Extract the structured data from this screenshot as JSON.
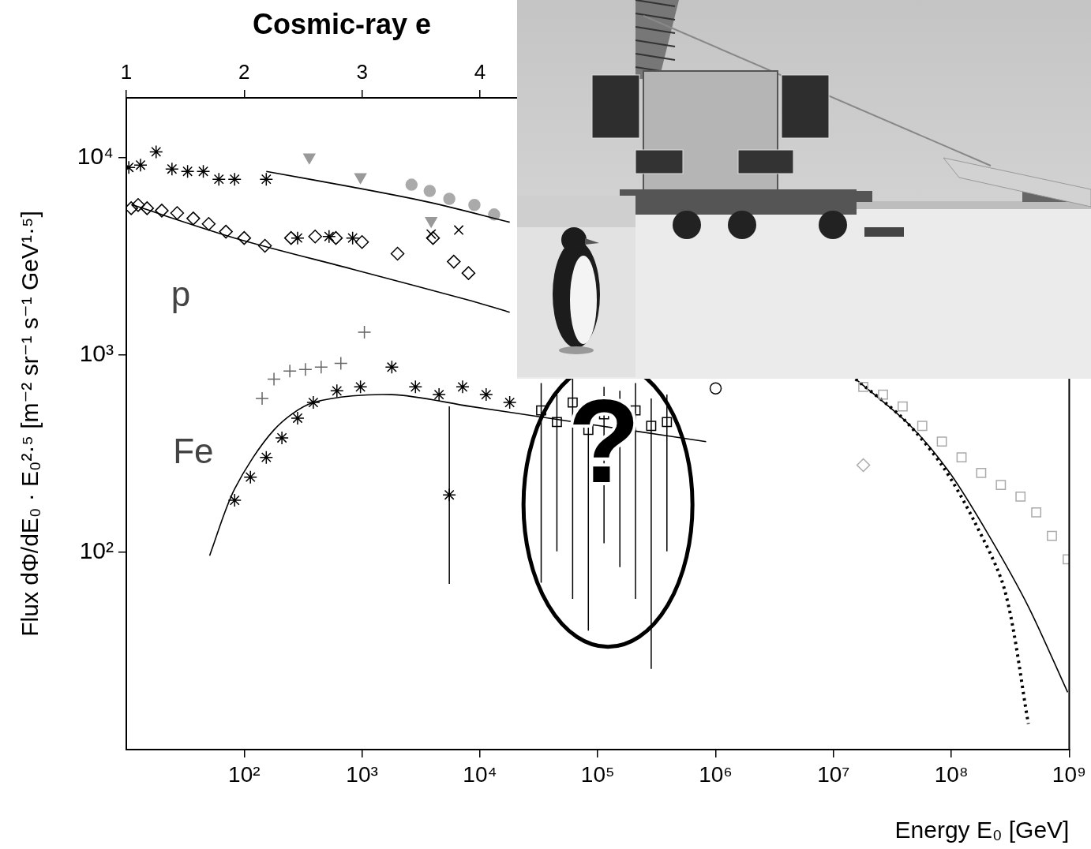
{
  "chart_data": {
    "type": "scatter",
    "title": "Cosmic-ray e",
    "x_label": "Energy E₀ [GeV]",
    "y_label": "Flux dΦ/dE₀ · E₀²·⁵ [m⁻² sr⁻¹ s⁻¹ GeV¹·⁵]",
    "log": true,
    "grid": false,
    "xlim": [
      10,
      1000000000
    ],
    "xticks": [
      {
        "value": 100,
        "label": "10²"
      },
      {
        "value": 1000,
        "label": "10³"
      },
      {
        "value": 10000,
        "label": "10⁴"
      },
      {
        "value": 100000,
        "label": "10⁵"
      },
      {
        "value": 1000000,
        "label": "10⁶"
      },
      {
        "value": 10000000,
        "label": "10⁷"
      },
      {
        "value": 100000000,
        "label": "10⁸"
      },
      {
        "value": 1000000000,
        "label": "10⁹"
      }
    ],
    "x2lim": [
      1,
      9
    ],
    "x2ticks": [
      1,
      2,
      3,
      4
    ],
    "ylim": [
      10,
      20000
    ],
    "yticks": [
      {
        "value": 100,
        "label": "10²"
      },
      {
        "value": 1000,
        "label": "10³"
      },
      {
        "value": 10000,
        "label": "10⁴"
      }
    ],
    "annotations": [
      {
        "text": "p",
        "x": 29,
        "y": 1970
      },
      {
        "text": "Fe",
        "x": 37,
        "y": 316
      },
      {
        "text": "?",
        "x": 113000,
        "y": 331,
        "marker": "ellipse"
      }
    ],
    "series": [
      {
        "color": "#000000",
        "marker": "star",
        "x": [
          10.5,
          13.2,
          17.9,
          24.4,
          33.1,
          45,
          61,
          83,
          154
        ],
        "values": [
          8880,
          9130,
          10660,
          8720,
          8480,
          8480,
          7740,
          7740,
          7740
        ]
      },
      {
        "color": "#000000",
        "marker": "open_diamond",
        "x": [
          11,
          12.6,
          15,
          20,
          27,
          37,
          50,
          70,
          100,
          150,
          250,
          400,
          600,
          1000,
          2000,
          4000,
          6000,
          8000
        ],
        "values": [
          5520,
          5730,
          5520,
          5370,
          5220,
          4900,
          4600,
          4200,
          3900,
          3560,
          3900,
          3970,
          3900,
          3720,
          3250,
          3900,
          2960,
          2590
        ]
      },
      {
        "color": "#000000",
        "marker": "open_star",
        "x": [
          284,
          525,
          832
        ],
        "values": [
          3900,
          3970,
          3900
        ]
      },
      {
        "color": "#000000",
        "marker": "x",
        "x": [
          3860,
          6610
        ],
        "values": [
          4080,
          4280
        ]
      },
      {
        "color": "#000000",
        "type": "line",
        "line_style": "solid",
        "marker": "none",
        "x": [
          154,
          832,
          3860,
          17900
        ],
        "values": [
          8480,
          7060,
          5890,
          4690
        ]
      },
      {
        "color": "#000000",
        "type": "line",
        "line_style": "solid",
        "marker": "none",
        "x": [
          11.3,
          83,
          832,
          8320,
          17900
        ],
        "values": [
          5730,
          3900,
          2710,
          1880,
          1640
        ]
      },
      {
        "color": "#999999",
        "marker": "triangle_down",
        "x": [
          357,
          970,
          3860
        ],
        "values": [
          10000,
          7950,
          4770
        ]
      },
      {
        "color": "#aaaaaa",
        "marker": "circle",
        "x": [
          2630,
          3750,
          5500,
          8980,
          13200
        ],
        "values": [
          7260,
          6750,
          6160,
          5730,
          5130
        ]
      },
      {
        "color": "#666666",
        "marker": "plus",
        "x": [
          142,
          179,
          244,
          331,
          450,
          661,
          1047
        ],
        "values": [
          600,
          753,
          826,
          841,
          865,
          904,
          1300
        ]
      },
      {
        "color": "#000000",
        "marker": "open_star",
        "x": [
          83,
          113,
          154,
          209,
          284,
          386,
          612,
          970,
          1790,
          2840,
          4500,
          7130,
          11300,
          17900
        ],
        "values": [
          183,
          240,
          302,
          379,
          477,
          573,
          656,
          687,
          865,
          687,
          628,
          687,
          628,
          573
        ]
      },
      {
        "color": "#000000",
        "marker": "open_square",
        "x": [
          33100,
          45000,
          61200,
          83200,
          113000,
          154000,
          209000,
          284000,
          386000
        ],
        "values": [
          522,
          456,
          573,
          416,
          499,
          477,
          522,
          436,
          456
        ],
        "y_low": [
          70,
          101,
          58,
          40,
          111,
          84,
          58,
          25.6,
          101
        ],
        "y_high": [
          719,
          628,
          789,
          573,
          687,
          656,
          719,
          600,
          628
        ]
      },
      {
        "color": "#000000",
        "marker": "star",
        "x": [
          5500
        ],
        "values": [
          195
        ],
        "y_low": [
          69
        ],
        "y_high": [
          547
        ]
      },
      {
        "color": "#000000",
        "type": "line",
        "line_style": "solid",
        "marker": "none",
        "x": [
          50.9,
          83,
          179,
          389,
          1780,
          8320,
          38600,
          179000,
          830000
        ],
        "values": [
          96,
          209,
          416,
          573,
          628,
          547,
          477,
          416,
          363
        ]
      },
      {
        "color": "#000000",
        "marker": "open_circle",
        "x": [
          1000000
        ],
        "values": [
          675
        ]
      },
      {
        "color": "#aaaaaa",
        "marker": "open_square",
        "x": [
          17900000,
          26300000,
          38600000,
          56600000,
          83000000,
          122000000,
          179000000,
          263000000,
          386000000,
          525000000,
          713000000,
          970000000
        ],
        "values": [
          687,
          628,
          547,
          436,
          363,
          302,
          252,
          219,
          191,
          159,
          121,
          92
        ]
      },
      {
        "color": "#aaaaaa",
        "marker": "open_diamond",
        "x": [
          17900000
        ],
        "values": [
          276
        ]
      },
      {
        "color": "#000000",
        "type": "line",
        "line_style": "solid",
        "marker": "none",
        "x": [
          15400000,
          45000000,
          97000000,
          209000000,
          450000000,
          970000000
        ],
        "values": [
          753,
          436,
          252,
          121,
          53,
          19.5
        ]
      },
      {
        "color": "#000000",
        "type": "line",
        "line_style": "dotted",
        "marker": "none",
        "x": [
          15400000,
          38600000,
          83000000,
          154000000,
          284000000,
          450000000
        ],
        "values": [
          753,
          477,
          276,
          146,
          64,
          13.5
        ]
      }
    ]
  }
}
